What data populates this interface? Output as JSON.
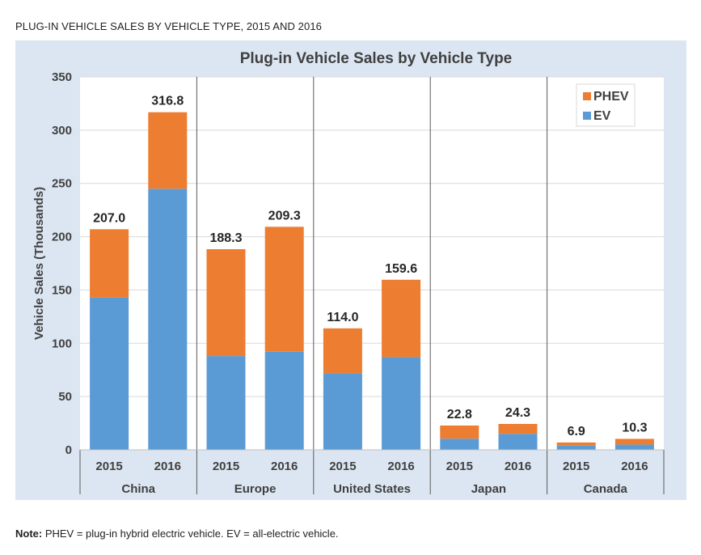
{
  "page": {
    "heading": "PLUG-IN VEHICLE SALES BY VEHICLE TYPE, 2015 AND 2016",
    "note_label": "Note:",
    "note_text": " PHEV = plug-in hybrid electric vehicle. EV = all-electric vehicle."
  },
  "chart_data": {
    "type": "bar",
    "stacked": true,
    "title": "Plug-in Vehicle Sales by Vehicle Type",
    "xlabel": "",
    "ylabel": "Vehicle Sales (Thousands)",
    "ylim": [
      0,
      350
    ],
    "yticks": [
      0,
      50,
      100,
      150,
      200,
      250,
      300,
      350
    ],
    "grid": true,
    "legend_position": "top-right",
    "groups": [
      "China",
      "Europe",
      "United States",
      "Japan",
      "Canada"
    ],
    "categories": [
      "2015",
      "2016",
      "2015",
      "2016",
      "2015",
      "2016",
      "2015",
      "2016",
      "2015",
      "2016"
    ],
    "series": [
      {
        "name": "EV",
        "color": "#5b9bd5",
        "values": [
          143.0,
          245.0,
          88.0,
          92.0,
          72.0,
          87.0,
          10.5,
          15.0,
          4.0,
          5.0
        ]
      },
      {
        "name": "PHEV",
        "color": "#ed7d31",
        "values": [
          64.0,
          71.8,
          100.3,
          117.3,
          42.0,
          72.6,
          12.3,
          9.3,
          2.9,
          5.3
        ]
      }
    ],
    "totals": [
      "207.0",
      "316.8",
      "188.3",
      "209.3",
      "114.0",
      "159.6",
      "22.8",
      "24.3",
      "6.9",
      "10.3"
    ]
  }
}
